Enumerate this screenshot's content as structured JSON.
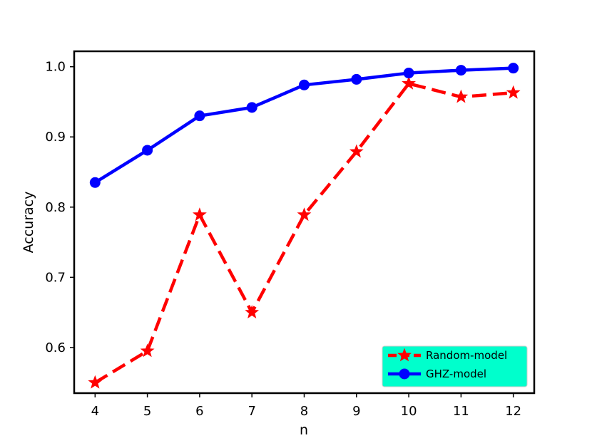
{
  "chart_data": {
    "type": "line",
    "xlabel": "n",
    "ylabel": "Accuracy",
    "x": [
      4,
      5,
      6,
      7,
      8,
      9,
      10,
      11,
      12
    ],
    "xlim": [
      3.6,
      12.4
    ],
    "ylim": [
      0.535,
      1.022
    ],
    "xticks": [
      "4",
      "5",
      "6",
      "7",
      "8",
      "9",
      "10",
      "11",
      "12"
    ],
    "yticks": [
      {
        "value": 0.6,
        "label": "0.6"
      },
      {
        "value": 0.7,
        "label": "0.7"
      },
      {
        "value": 0.8,
        "label": "0.8"
      },
      {
        "value": 0.9,
        "label": "0.9"
      },
      {
        "value": 1.0,
        "label": "1.0"
      }
    ],
    "grid": false,
    "legend_position": "bottom-right",
    "legend_background": "#00ffcc",
    "series": [
      {
        "name": "Random-model",
        "values": [
          0.55,
          0.595,
          0.789,
          0.65,
          0.789,
          0.879,
          0.976,
          0.957,
          0.963
        ],
        "color": "#ff0000",
        "line_style": "dashed",
        "marker": "star"
      },
      {
        "name": "GHZ-model",
        "values": [
          0.835,
          0.881,
          0.93,
          0.942,
          0.974,
          0.982,
          0.991,
          0.995,
          0.998
        ],
        "color": "#0000ff",
        "line_style": "solid",
        "marker": "circle"
      }
    ]
  }
}
